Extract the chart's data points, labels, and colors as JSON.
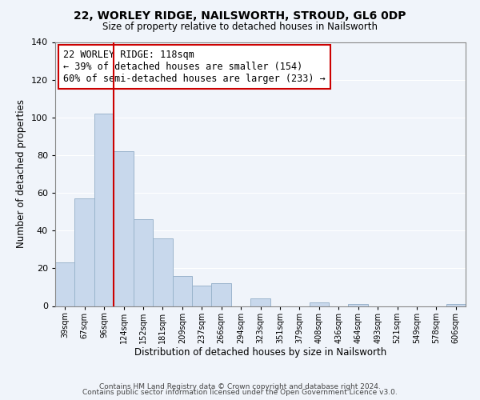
{
  "title": "22, WORLEY RIDGE, NAILSWORTH, STROUD, GL6 0DP",
  "subtitle": "Size of property relative to detached houses in Nailsworth",
  "xlabel": "Distribution of detached houses by size in Nailsworth",
  "ylabel": "Number of detached properties",
  "bar_labels": [
    "39sqm",
    "67sqm",
    "96sqm",
    "124sqm",
    "152sqm",
    "181sqm",
    "209sqm",
    "237sqm",
    "266sqm",
    "294sqm",
    "323sqm",
    "351sqm",
    "379sqm",
    "408sqm",
    "436sqm",
    "464sqm",
    "493sqm",
    "521sqm",
    "549sqm",
    "578sqm",
    "606sqm"
  ],
  "bar_heights": [
    23,
    57,
    102,
    82,
    46,
    36,
    16,
    11,
    12,
    0,
    4,
    0,
    0,
    2,
    0,
    1,
    0,
    0,
    0,
    0,
    1
  ],
  "bar_color": "#c8d8ec",
  "bar_edge_color": "#9ab4cc",
  "vline_color": "#cc0000",
  "ylim": [
    0,
    140
  ],
  "yticks": [
    0,
    20,
    40,
    60,
    80,
    100,
    120,
    140
  ],
  "annotation_text": "22 WORLEY RIDGE: 118sqm\n← 39% of detached houses are smaller (154)\n60% of semi-detached houses are larger (233) →",
  "annotation_box_color": "white",
  "annotation_box_edgecolor": "#cc0000",
  "footer_line1": "Contains HM Land Registry data © Crown copyright and database right 2024.",
  "footer_line2": "Contains public sector information licensed under the Open Government Licence v3.0.",
  "background_color": "#f0f4fa",
  "grid_color": "white"
}
